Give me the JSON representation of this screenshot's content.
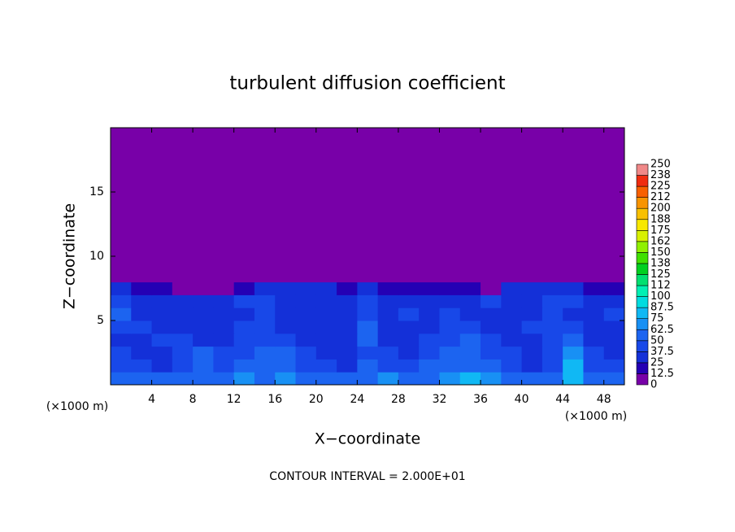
{
  "chart_data": {
    "type": "heatmap",
    "title": "turbulent diffusion coefficient",
    "xlabel": "X−coordinate",
    "ylabel": "Z−coordinate",
    "x_unit": "(×1000 m)",
    "y_unit": "(×1000 m)",
    "note": "CONTOUR INTERVAL = 2.000E+01",
    "xlim": [
      0,
      50
    ],
    "ylim": [
      0,
      20
    ],
    "xticks": [
      4,
      8,
      12,
      16,
      20,
      24,
      28,
      32,
      36,
      40,
      44,
      48
    ],
    "yticks": [
      5,
      10,
      15
    ],
    "x_edges": [
      0,
      2,
      4,
      6,
      8,
      10,
      12,
      14,
      16,
      18,
      20,
      22,
      24,
      26,
      28,
      30,
      32,
      34,
      36,
      38,
      40,
      42,
      44,
      46,
      48,
      50
    ],
    "z_edges": [
      0,
      1,
      2,
      3,
      4,
      5,
      6,
      7,
      8,
      20
    ],
    "values": [
      [
        60,
        55,
        50,
        55,
        50,
        60,
        65,
        60,
        70,
        60,
        55,
        60,
        60,
        65,
        60,
        55,
        65,
        75,
        70,
        60,
        55,
        60,
        80,
        60,
        55
      ],
      [
        45,
        40,
        30,
        40,
        55,
        45,
        50,
        55,
        60,
        45,
        40,
        35,
        50,
        45,
        40,
        50,
        55,
        60,
        50,
        45,
        35,
        40,
        75,
        45,
        40
      ],
      [
        40,
        35,
        35,
        45,
        50,
        40,
        45,
        50,
        55,
        40,
        35,
        35,
        45,
        40,
        35,
        45,
        50,
        55,
        45,
        40,
        35,
        40,
        65,
        40,
        35
      ],
      [
        35,
        30,
        40,
        45,
        35,
        35,
        40,
        45,
        40,
        35,
        30,
        35,
        55,
        35,
        30,
        40,
        45,
        50,
        40,
        35,
        35,
        40,
        55,
        35,
        30
      ],
      [
        40,
        45,
        35,
        30,
        30,
        35,
        40,
        45,
        35,
        35,
        30,
        35,
        50,
        35,
        35,
        35,
        45,
        40,
        35,
        35,
        40,
        40,
        40,
        30,
        35
      ],
      [
        50,
        35,
        30,
        35,
        30,
        35,
        35,
        40,
        35,
        30,
        30,
        35,
        45,
        35,
        40,
        35,
        40,
        35,
        35,
        35,
        35,
        40,
        35,
        30,
        40
      ],
      [
        45,
        35,
        35,
        30,
        30,
        35,
        40,
        40,
        35,
        35,
        30,
        35,
        45,
        35,
        35,
        35,
        30,
        35,
        40,
        35,
        35,
        40,
        40,
        35,
        35
      ],
      [
        25,
        20,
        15,
        5,
        5,
        10,
        20,
        30,
        30,
        30,
        25,
        20,
        30,
        15,
        20,
        20,
        15,
        20,
        10,
        25,
        30,
        30,
        25,
        20,
        15
      ],
      [
        0,
        0,
        0,
        0,
        0,
        0,
        0,
        0,
        0,
        0,
        0,
        0,
        0,
        0,
        0,
        0,
        0,
        0,
        0,
        0,
        0,
        0,
        0,
        0,
        0
      ]
    ],
    "colorbar": {
      "levels": [
        0,
        {
          "value": 12.5,
          "label": "12.5"
        },
        25,
        {
          "value": 37.5,
          "label": "37.5"
        },
        50,
        {
          "value": 62.5,
          "label": "62.5"
        },
        75,
        {
          "value": 87.5,
          "label": "87.5"
        },
        100,
        {
          "value": 112.5,
          "label": "112"
        },
        125,
        {
          "value": 137.5,
          "label": "138"
        },
        150,
        {
          "value": 162.5,
          "label": "162"
        },
        175,
        {
          "value": 187.5,
          "label": "188"
        },
        200,
        {
          "value": 212.5,
          "label": "212"
        },
        225,
        {
          "value": 237.5,
          "label": "238"
        },
        250
      ],
      "colors": [
        "#7800a8",
        "#2400b4",
        "#1430d8",
        "#1848e8",
        "#1c64f0",
        "#1890f4",
        "#10b8f4",
        "#00dce0",
        "#00f0b4",
        "#00e070",
        "#00d020",
        "#40e000",
        "#90f000",
        "#d8f000",
        "#f8e800",
        "#f8c000",
        "#f89400",
        "#f86000",
        "#f02c10",
        "#f08888"
      ]
    }
  }
}
